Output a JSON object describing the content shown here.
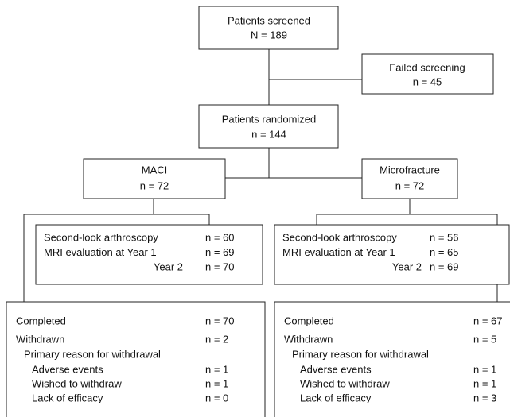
{
  "screened": {
    "label": "Patients screened",
    "count": "N = 189"
  },
  "failed": {
    "label": "Failed screening",
    "count": "n = 45"
  },
  "randomized": {
    "label": "Patients randomized",
    "count": "n = 144"
  },
  "arms": [
    {
      "label": "MACI",
      "count": "n = 72",
      "evaluations": [
        [
          "Second-look arthroscopy",
          "n = 60"
        ],
        [
          "MRI evaluation at Year 1",
          "n = 69"
        ],
        [
          "Year 2",
          "n = 70"
        ]
      ],
      "completed": [
        "Completed",
        "n = 70"
      ],
      "withdrawn": [
        "Withdrawn",
        "n = 2"
      ],
      "reason_heading": "Primary reason for withdrawal",
      "reasons": [
        [
          "Adverse events",
          "n = 1"
        ],
        [
          "Wished to withdraw",
          "n = 1"
        ],
        [
          "Lack of efficacy",
          "n = 0"
        ]
      ]
    },
    {
      "label": "Microfracture",
      "count": "n = 72",
      "evaluations": [
        [
          "Second-look arthroscopy",
          "n = 56"
        ],
        [
          "MRI evaluation at Year 1",
          "n = 65"
        ],
        [
          "Year 2",
          "n = 69"
        ]
      ],
      "completed": [
        "Completed",
        "n = 67"
      ],
      "withdrawn": [
        "Withdrawn",
        "n = 5"
      ],
      "reason_heading": "Primary reason for withdrawal",
      "reasons": [
        [
          "Adverse events",
          "n = 1"
        ],
        [
          "Wished to withdraw",
          "n = 1"
        ],
        [
          "Lack of efficacy",
          "n = 3"
        ]
      ]
    }
  ]
}
